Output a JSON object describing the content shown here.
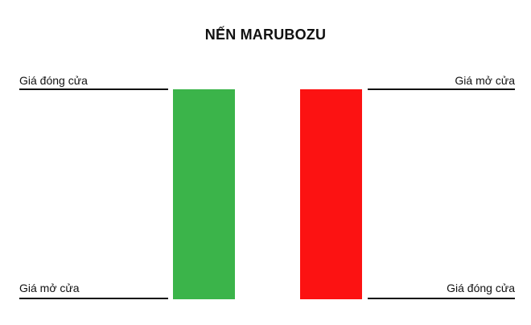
{
  "title": "NẾN MARUBOZU",
  "bullish": {
    "color": "#3bb44a",
    "top_label": "Giá đóng cửa",
    "bottom_label": "Giá mở cửa"
  },
  "bearish": {
    "color": "#fc1212",
    "top_label": "Giá mở cửa",
    "bottom_label": "Giá đóng cửa"
  }
}
